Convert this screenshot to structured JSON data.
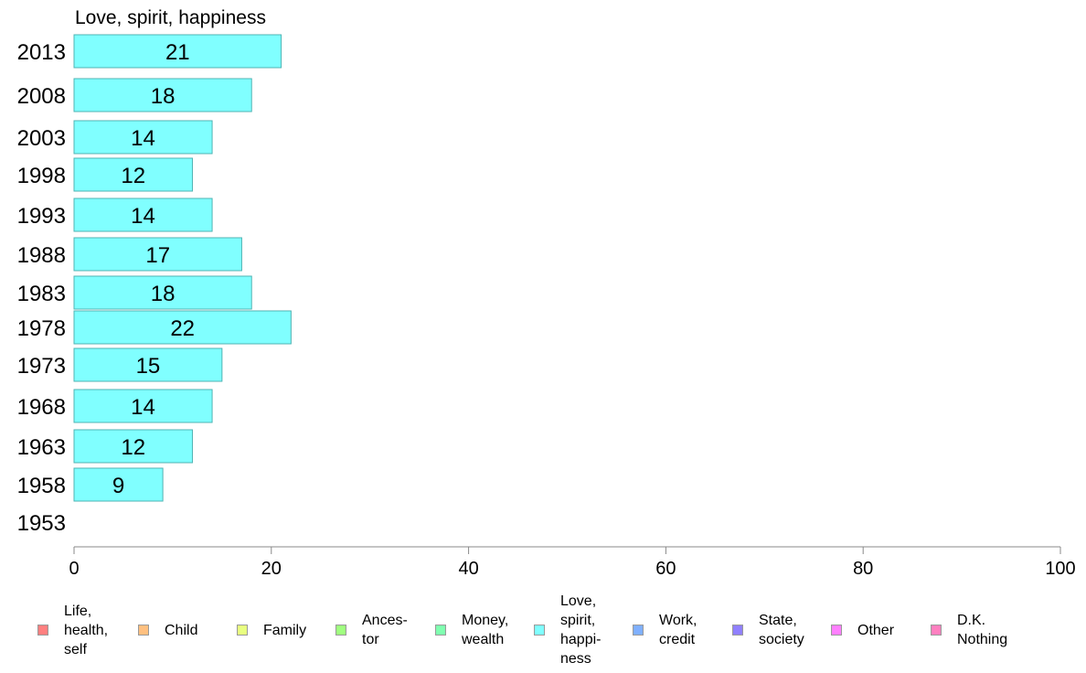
{
  "chart_data": {
    "type": "bar",
    "orientation": "horizontal",
    "title": "Love, spirit, happiness",
    "categories": [
      "2013",
      "2008",
      "2003",
      "1998",
      "1993",
      "1988",
      "1983",
      "1978",
      "1973",
      "1968",
      "1963",
      "1958",
      "1953"
    ],
    "values": [
      21,
      18,
      14,
      12,
      14,
      17,
      18,
      22,
      15,
      14,
      12,
      9,
      null
    ],
    "value_labels": [
      "21",
      "18",
      "14",
      "12",
      "14",
      "17",
      "18",
      "22",
      "15",
      "14",
      "12",
      "9",
      ""
    ],
    "xlim": [
      0,
      100
    ],
    "xticks": [
      0,
      20,
      40,
      60,
      80,
      100
    ],
    "xlabel": "",
    "ylabel": "",
    "bar_color": "#80ffff",
    "bar_edge_color": "#4fb3b3",
    "grid": false,
    "legend": {
      "placement": "bottom",
      "entries": [
        {
          "label": "Life,\nhealth,\nself",
          "color": "#ff8080"
        },
        {
          "label": "Child",
          "color": "#ffc080"
        },
        {
          "label": "Family",
          "color": "#e8ff80"
        },
        {
          "label": "Ances-\ntor",
          "color": "#a0ff80"
        },
        {
          "label": "Money,\nwealth",
          "color": "#80ffb0"
        },
        {
          "label": "Love,\nspirit,\nhappi-\nness",
          "color": "#80ffff"
        },
        {
          "label": "Work,\ncredit",
          "color": "#80b0ff"
        },
        {
          "label": "State,\nsociety",
          "color": "#9080ff"
        },
        {
          "label": "Other",
          "color": "#ff80ff"
        },
        {
          "label": "D.K.\nNothing",
          "color": "#ff80c0"
        }
      ]
    }
  }
}
